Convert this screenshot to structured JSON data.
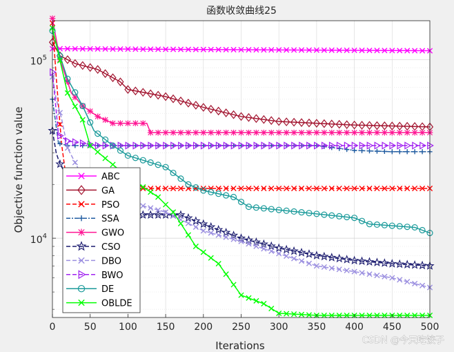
{
  "watermark": "CSDN @今天吃饺子",
  "chart_data": {
    "type": "line",
    "title": "函数收敛曲线25",
    "xlabel": "Iterations",
    "ylabel": "Objective function value",
    "xlim": [
      0,
      500
    ],
    "ylim": [
      3600,
      165000
    ],
    "yscale": "log",
    "grid": true,
    "legend_position": "bottom-left",
    "x_ticks": [
      0,
      50,
      100,
      150,
      200,
      250,
      300,
      350,
      400,
      450,
      500
    ],
    "x_tick_labels": [
      "0",
      "50",
      "100",
      "150",
      "200",
      "250",
      "300",
      "350",
      "400",
      "450",
      "500"
    ],
    "y_ticks": [
      10000,
      100000
    ],
    "y_tick_base": "10",
    "y_tick_exponents": [
      "4",
      "5"
    ],
    "series": [
      {
        "name": "ABC",
        "color": "#ff00ff",
        "marker": "x",
        "dash": "",
        "points": [
          [
            0,
            115000
          ],
          [
            10,
            115000
          ],
          [
            500,
            112000
          ]
        ]
      },
      {
        "name": "GA",
        "color": "#a2142f",
        "marker": "diamond",
        "dash": "",
        "points": [
          [
            0,
            125000
          ],
          [
            10,
            105000
          ],
          [
            30,
            95000
          ],
          [
            60,
            88000
          ],
          [
            90,
            75000
          ],
          [
            100,
            68000
          ],
          [
            150,
            62000
          ],
          [
            200,
            54000
          ],
          [
            250,
            48000
          ],
          [
            300,
            45000
          ],
          [
            350,
            44000
          ],
          [
            400,
            43000
          ],
          [
            500,
            42000
          ]
        ]
      },
      {
        "name": "PSO",
        "color": "#ff0000",
        "marker": "x",
        "dash": "6,3",
        "points": [
          [
            0,
            160000
          ],
          [
            5,
            80000
          ],
          [
            12,
            34000
          ],
          [
            20,
            19000
          ],
          [
            500,
            19000
          ]
        ]
      },
      {
        "name": "SSA",
        "color": "#1f5ba0",
        "marker": "plus",
        "dash": "6,2,2,2",
        "points": [
          [
            0,
            60000
          ],
          [
            8,
            34000
          ],
          [
            20,
            33000
          ],
          [
            350,
            33000
          ],
          [
            400,
            31000
          ],
          [
            450,
            30500
          ],
          [
            500,
            30500
          ]
        ]
      },
      {
        "name": "GWO",
        "color": "#ff1493",
        "marker": "star",
        "dash": "",
        "points": [
          [
            0,
            170000
          ],
          [
            10,
            100000
          ],
          [
            25,
            65000
          ],
          [
            40,
            55000
          ],
          [
            60,
            48000
          ],
          [
            80,
            44000
          ],
          [
            125,
            44000
          ],
          [
            130,
            39000
          ],
          [
            500,
            39000
          ]
        ]
      },
      {
        "name": "CSO",
        "color": "#1a1a6e",
        "marker": "pentagram",
        "dash": "6,3",
        "points": [
          [
            0,
            40000
          ],
          [
            5,
            30000
          ],
          [
            10,
            26000
          ],
          [
            20,
            22000
          ],
          [
            40,
            18000
          ],
          [
            70,
            15000
          ],
          [
            100,
            13500
          ],
          [
            170,
            13500
          ],
          [
            200,
            12000
          ],
          [
            250,
            10000
          ],
          [
            300,
            8800
          ],
          [
            350,
            8000
          ],
          [
            400,
            7500
          ],
          [
            450,
            7200
          ],
          [
            500,
            7000
          ]
        ]
      },
      {
        "name": "DBO",
        "color": "#9b8fe0",
        "marker": "x",
        "dash": "6,3",
        "points": [
          [
            0,
            80000
          ],
          [
            5,
            60000
          ],
          [
            12,
            47000
          ],
          [
            20,
            32000
          ],
          [
            40,
            22000
          ],
          [
            60,
            18000
          ],
          [
            100,
            16000
          ],
          [
            150,
            14000
          ],
          [
            200,
            11000
          ],
          [
            250,
            9600
          ],
          [
            300,
            8200
          ],
          [
            350,
            7000
          ],
          [
            400,
            6500
          ],
          [
            450,
            6000
          ],
          [
            500,
            5300
          ]
        ]
      },
      {
        "name": "BWO",
        "color": "#a020f0",
        "marker": "triangle-right",
        "dash": "6,3",
        "points": [
          [
            0,
            85000
          ],
          [
            8,
            38000
          ],
          [
            20,
            35000
          ],
          [
            60,
            33000
          ],
          [
            500,
            33000
          ]
        ]
      },
      {
        "name": "DE",
        "color": "#1a9a9a",
        "marker": "circle",
        "dash": "",
        "points": [
          [
            0,
            145000
          ],
          [
            10,
            105000
          ],
          [
            20,
            78000
          ],
          [
            40,
            55000
          ],
          [
            55,
            40000
          ],
          [
            80,
            33000
          ],
          [
            100,
            29000
          ],
          [
            150,
            25000
          ],
          [
            180,
            20000
          ],
          [
            200,
            18500
          ],
          [
            240,
            17000
          ],
          [
            260,
            15000
          ],
          [
            400,
            13000
          ],
          [
            420,
            12000
          ],
          [
            480,
            11500
          ],
          [
            500,
            10700
          ]
        ]
      },
      {
        "name": "OBLDE",
        "color": "#00ff00",
        "marker": "x",
        "dash": "",
        "points": [
          [
            0,
            150000
          ],
          [
            20,
            65000
          ],
          [
            40,
            46000
          ],
          [
            50,
            33000
          ],
          [
            70,
            28000
          ],
          [
            100,
            22000
          ],
          [
            140,
            17000
          ],
          [
            160,
            14000
          ],
          [
            190,
            9000
          ],
          [
            220,
            7200
          ],
          [
            250,
            4800
          ],
          [
            280,
            4300
          ],
          [
            300,
            3800
          ],
          [
            350,
            3700
          ],
          [
            500,
            3700
          ]
        ]
      }
    ]
  }
}
